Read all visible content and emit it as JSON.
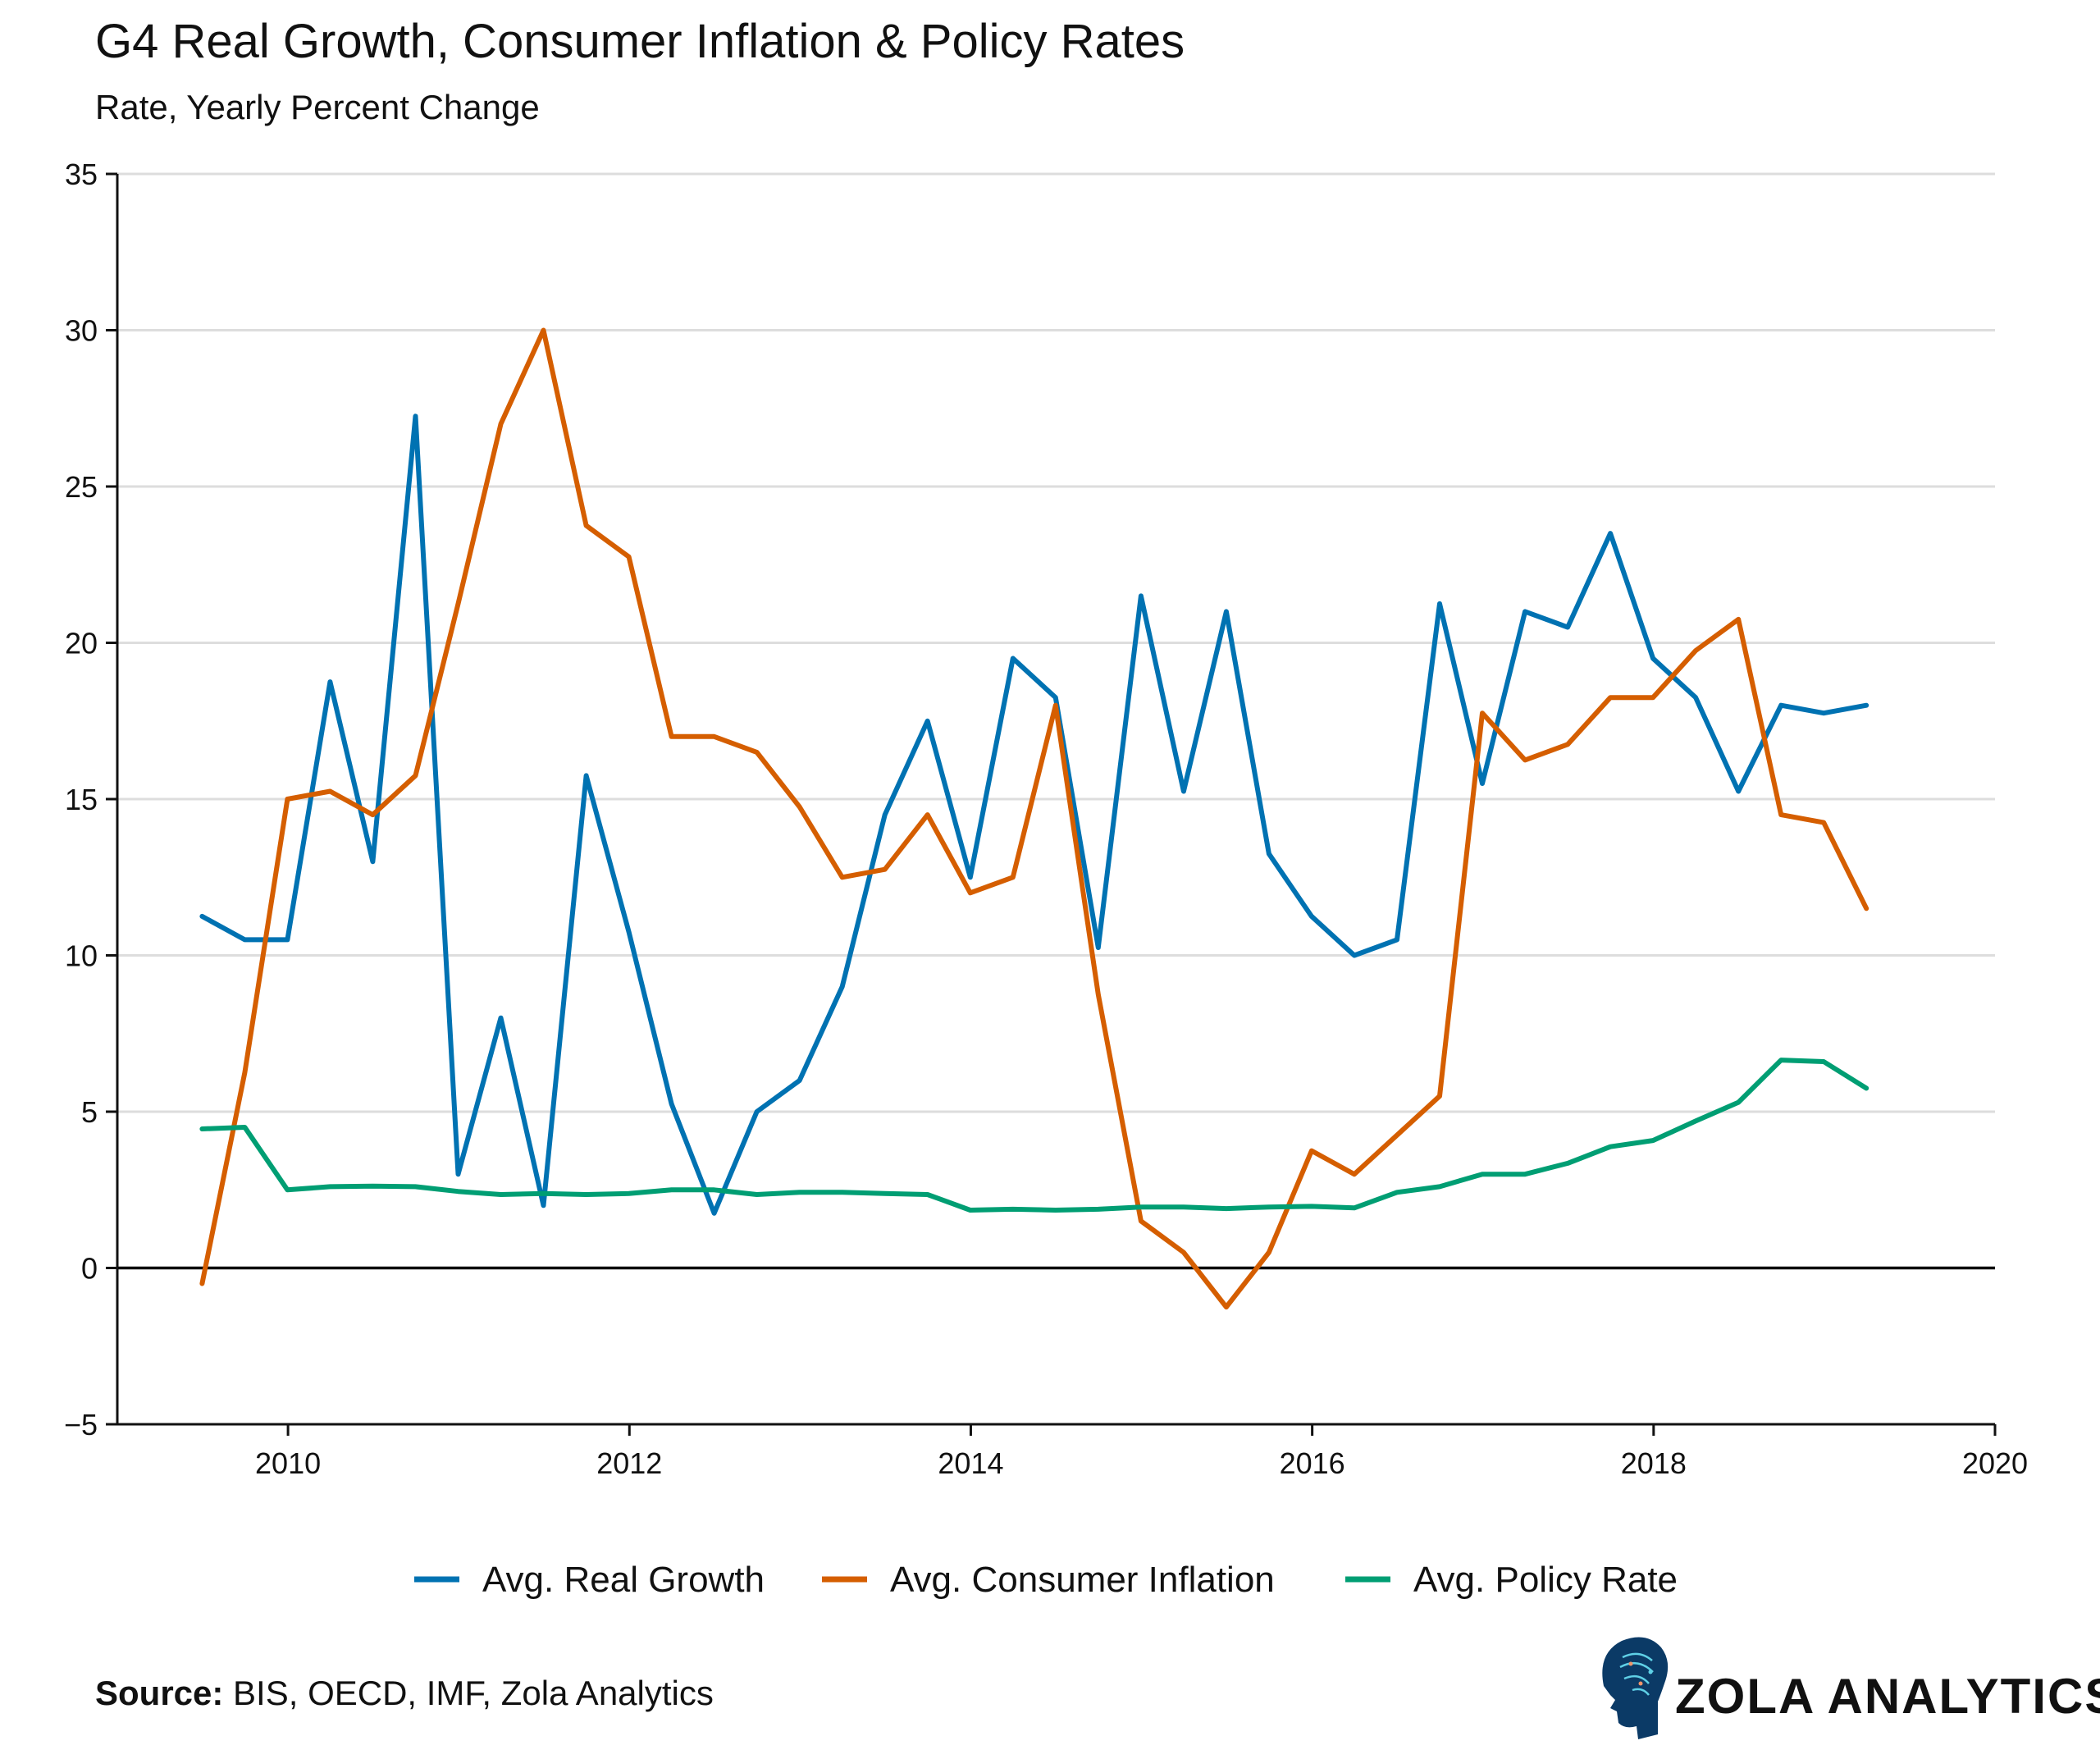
{
  "chart_data": {
    "type": "line",
    "title": "G4 Real Growth, Consumer Inflation & Policy Rates",
    "subtitle": "Rate, Yearly Percent Change",
    "xlabel": "",
    "ylabel": "",
    "xlim": [
      2009,
      2020
    ],
    "ylim": [
      -5,
      35
    ],
    "x_ticks": [
      "2010",
      "2012",
      "2014",
      "2016",
      "2018",
      "2020"
    ],
    "y_ticks": [
      "−5",
      "0",
      "5",
      "10",
      "15",
      "20",
      "25",
      "30",
      "35"
    ],
    "grid": "horizontal",
    "legend_position": "bottom",
    "x": [
      "2009-06",
      "2009-09",
      "2009-12",
      "2010-03",
      "2010-06",
      "2010-09",
      "2010-12",
      "2011-03",
      "2011-06",
      "2011-09",
      "2011-12",
      "2012-03",
      "2012-06",
      "2012-09",
      "2012-12",
      "2013-03",
      "2013-06",
      "2013-09",
      "2013-12",
      "2014-03",
      "2014-06",
      "2014-09",
      "2014-12",
      "2015-03",
      "2015-06",
      "2015-09",
      "2015-12",
      "2016-03",
      "2016-06",
      "2016-09",
      "2016-12",
      "2017-03",
      "2017-06",
      "2017-09",
      "2017-12",
      "2018-03",
      "2018-06",
      "2018-09",
      "2018-12",
      "2019-03"
    ],
    "series": [
      {
        "name": "Avg. Real Growth",
        "color": "#0072B2",
        "values": [
          11.25,
          10.5,
          10.5,
          18.75,
          13,
          27.25,
          3,
          8,
          2,
          15.75,
          10.75,
          5.25,
          1.75,
          5,
          6,
          9,
          14.5,
          17.5,
          12.5,
          19.5,
          18.25,
          10.25,
          21.5,
          15.25,
          21,
          13.25,
          11.25,
          10,
          10.5,
          21.25,
          15.5,
          21,
          20.5,
          23.5,
          19.5,
          18.25,
          15.25,
          18,
          17.75,
          18
        ]
      },
      {
        "name": "Avg. Consumer Inflation",
        "color": "#D55E00",
        "values": [
          -0.5,
          6.25,
          15,
          15.25,
          14.5,
          15.75,
          21.25,
          27,
          30,
          23.75,
          22.75,
          17,
          17,
          16.5,
          14.75,
          12.5,
          12.75,
          14.5,
          12,
          12.5,
          18,
          8.75,
          1.5,
          0.5,
          -1.25,
          0.5,
          3.75,
          3,
          4.25,
          5.5,
          17.75,
          16.25,
          16.75,
          18.25,
          18.25,
          19.75,
          20.75,
          14.5,
          14.25,
          11.5
        ]
      },
      {
        "name": "Avg. Policy Rate",
        "color": "#009E73",
        "values": [
          4.45,
          4.5,
          2.5,
          2.6,
          2.62,
          2.6,
          2.45,
          2.35,
          2.38,
          2.35,
          2.38,
          2.5,
          2.5,
          2.35,
          2.42,
          2.42,
          2.38,
          2.35,
          1.85,
          1.88,
          1.85,
          1.88,
          1.95,
          1.95,
          1.9,
          1.95,
          1.97,
          1.92,
          2.42,
          2.6,
          3.0,
          3.0,
          3.35,
          3.88,
          4.08,
          4.7,
          5.3,
          6.65,
          6.6,
          5.75
        ]
      }
    ]
  },
  "footer": {
    "source_label": "Source:",
    "source_text": " BIS, OECD, IMF, Zola Analytics",
    "logo_text": "ZOLA ANALYTICS"
  }
}
